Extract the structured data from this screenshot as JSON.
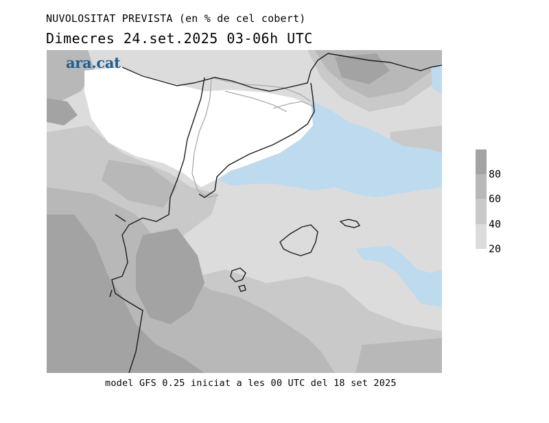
{
  "header": {
    "title": "NUVOLOSITAT PREVISTA (en % de cel cobert)",
    "subtitle": "Dimecres  24.set.2025 03-06h UTC"
  },
  "logo": {
    "text": "ara.cat"
  },
  "legend": {
    "ticks": [
      "80",
      "60",
      "40",
      "20"
    ],
    "colors": [
      "#a3a3a3",
      "#b8b8b8",
      "#c9c9c9",
      "#dcdcdc"
    ]
  },
  "footer": {
    "text": "model GFS 0.25 iniciat a les 00 UTC del 18 set 2025"
  },
  "map": {
    "colors": {
      "clear": "#ffffff",
      "low": "#dcdcdc",
      "mid": "#c9c9c9",
      "high": "#b8b8b8",
      "veryhigh": "#a3a3a3",
      "sea_clear": "#bedaee",
      "border": "#1a1a1a",
      "region_border": "#aaaaaa"
    }
  }
}
